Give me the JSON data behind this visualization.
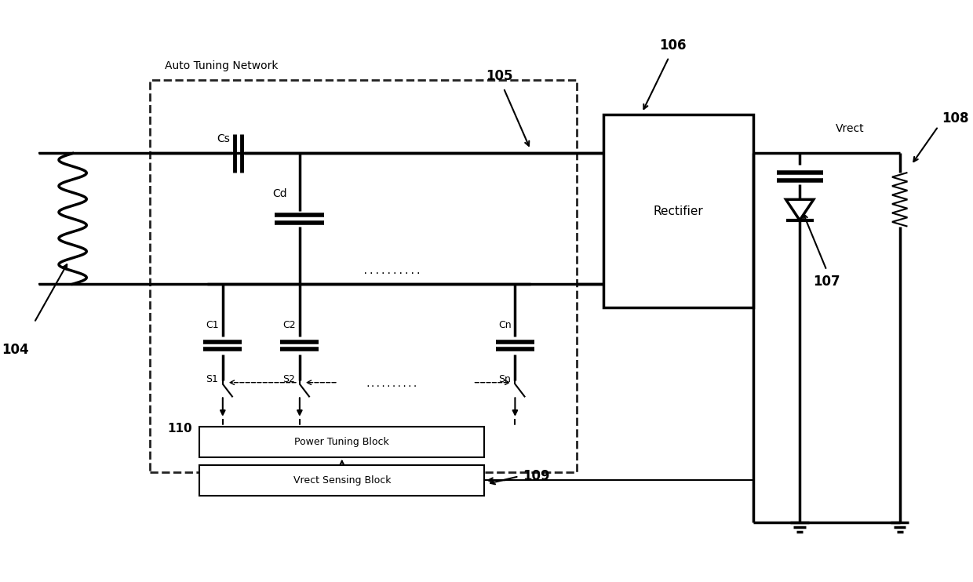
{
  "background_color": "#ffffff",
  "line_color": "#000000",
  "labels": {
    "auto_tuning": "Auto Tuning Network",
    "cs": "Cs",
    "cd": "Cd",
    "c1": "C1",
    "c2": "C2",
    "cn": "Cn",
    "s1": "S1",
    "s2": "S2",
    "sn": "Sn",
    "rectifier": "Rectifier",
    "vrect": "Vrect",
    "power_tuning": "Power Tuning Block",
    "vrect_sensing": "Vrect Sensing Block",
    "ref104": "104",
    "ref105": "105",
    "ref106": "106",
    "ref107": "107",
    "ref108": "108",
    "ref109": "109",
    "ref110": "110"
  },
  "figsize": [
    12.4,
    7.42
  ],
  "dpi": 100
}
